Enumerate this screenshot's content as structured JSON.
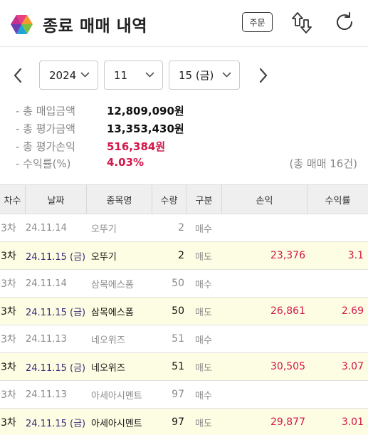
{
  "header": {
    "title": "종료 매매 내역",
    "order_label": "주문",
    "icons": [
      "app-logo-icon",
      "swap-sort-icon",
      "refresh-icon"
    ]
  },
  "date_selector": {
    "year": "2024",
    "month": "11",
    "day": "15 (금)"
  },
  "summary": {
    "total_buy_label": "- 총 매입금액",
    "total_buy_value": "12,809,090원",
    "total_eval_label": "- 총 평가금액",
    "total_eval_value": "13,353,430원",
    "total_pl_label": "- 총 평가손익",
    "total_pl_value": "516,384원",
    "return_label": "- 수익률(%)",
    "return_value": "4.03%",
    "trade_count": "(총 매매 16건)"
  },
  "colors": {
    "profit_red": "#d3174a",
    "sell_row_bg": "#fdfde3",
    "header_bg": "#efefef"
  },
  "table": {
    "columns": [
      "차수",
      "날짜",
      "종목명",
      "수량",
      "구분",
      "손익",
      "수익률"
    ],
    "rows": [
      {
        "round": "3차",
        "date": "24.11.14",
        "name": "오뚜기",
        "qty": "2",
        "type": "매수",
        "pl": "",
        "rate": ""
      },
      {
        "round": "3차",
        "date": "24.11.15 (금)",
        "name": "오뚜기",
        "qty": "2",
        "type": "매도",
        "pl": "23,376",
        "rate": "3.1"
      },
      {
        "round": "3차",
        "date": "24.11.14",
        "name": "삼목에스폼",
        "qty": "50",
        "type": "매수",
        "pl": "",
        "rate": ""
      },
      {
        "round": "3차",
        "date": "24.11.15 (금)",
        "name": "삼목에스폼",
        "qty": "50",
        "type": "매도",
        "pl": "26,861",
        "rate": "2.69"
      },
      {
        "round": "3차",
        "date": "24.11.13",
        "name": "네오위즈",
        "qty": "51",
        "type": "매수",
        "pl": "",
        "rate": ""
      },
      {
        "round": "3차",
        "date": "24.11.15 (금)",
        "name": "네오위즈",
        "qty": "51",
        "type": "매도",
        "pl": "30,505",
        "rate": "3.07"
      },
      {
        "round": "3차",
        "date": "24.11.13",
        "name": "아세아시멘트",
        "qty": "97",
        "type": "매수",
        "pl": "",
        "rate": ""
      },
      {
        "round": "3차",
        "date": "24.11.15 (금)",
        "name": "아세아시멘트",
        "qty": "97",
        "type": "매도",
        "pl": "29,877",
        "rate": "3.01"
      }
    ]
  }
}
